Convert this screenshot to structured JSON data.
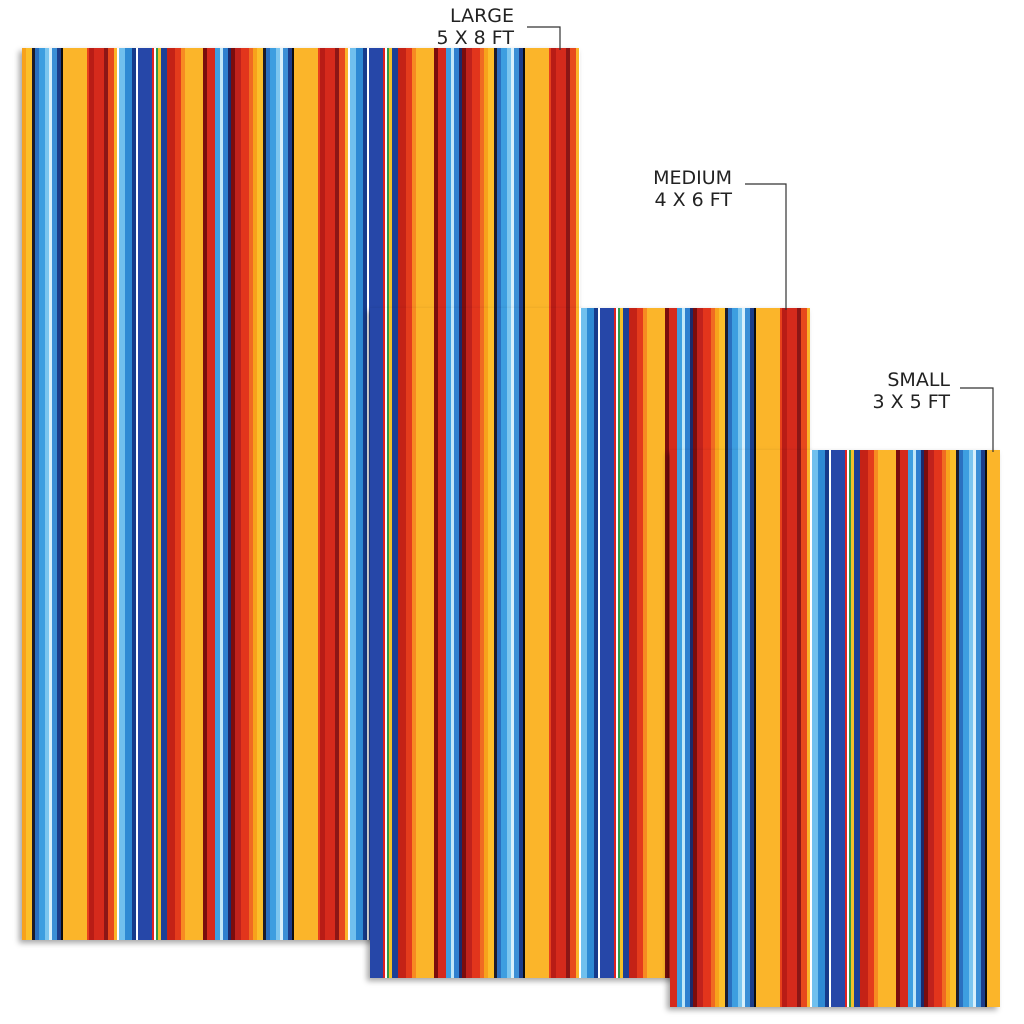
{
  "sizes": [
    {
      "name": "LARGE",
      "dimensions": "5 X 8  FT"
    },
    {
      "name": "MEDIUM",
      "dimensions": "4 X 6  FT"
    },
    {
      "name": "SMALL",
      "dimensions": "3 X 5  FT"
    }
  ]
}
